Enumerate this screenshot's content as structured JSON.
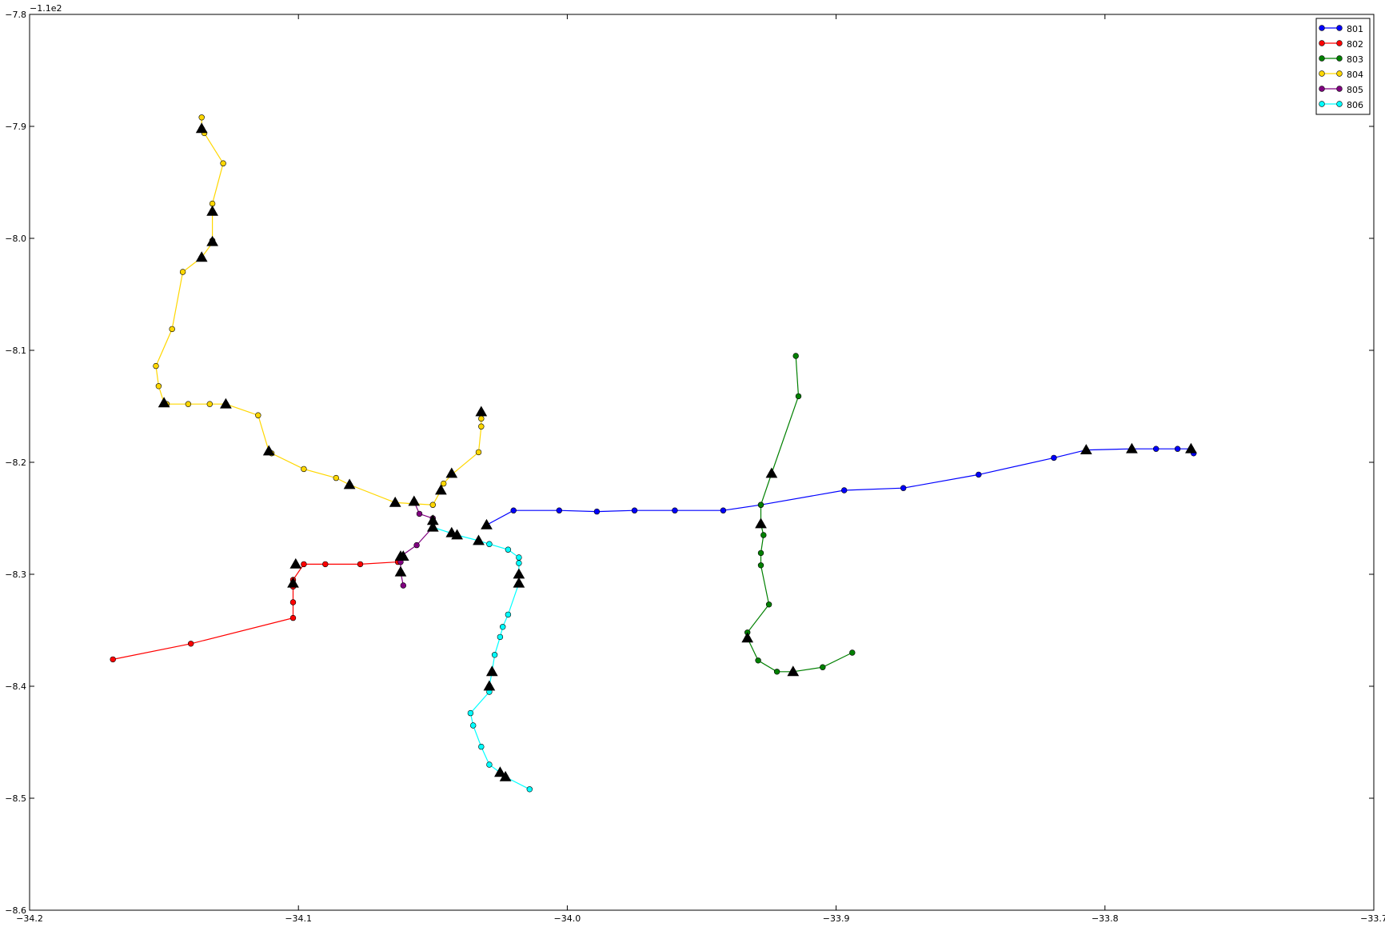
{
  "chart_data": {
    "type": "line",
    "title": "",
    "xlabel": "",
    "ylabel": "",
    "xlim": [
      -34.2,
      -33.7
    ],
    "ylim": [
      -8.6,
      -7.8
    ],
    "y_offset_label": "−1.1e2",
    "xticks": [
      -34.2,
      -34.1,
      -34.0,
      -33.9,
      -33.8,
      -33.7
    ],
    "xtick_labels": [
      "−34.2",
      "−34.1",
      "−34.0",
      "−33.9",
      "−33.8",
      "−33.7"
    ],
    "yticks": [
      -7.8,
      -7.9,
      -8.0,
      -8.1,
      -8.2,
      -8.3,
      -8.4,
      -8.5,
      -8.6
    ],
    "ytick_labels": [
      "−7.8",
      "−7.9",
      "−8.0",
      "−8.1",
      "−8.2",
      "−8.3",
      "−8.4",
      "−8.5",
      "−8.6"
    ],
    "grid": false,
    "legend_position": "top-right",
    "series": [
      {
        "name": "801",
        "color": "#0000ff",
        "points": [
          [
            -34.03,
            -8.256
          ],
          [
            -34.02,
            -8.243
          ],
          [
            -34.003,
            -8.243
          ],
          [
            -33.989,
            -8.244
          ],
          [
            -33.975,
            -8.243
          ],
          [
            -33.96,
            -8.243
          ],
          [
            -33.942,
            -8.243
          ],
          [
            -33.928,
            -8.238
          ],
          [
            -33.897,
            -8.225
          ],
          [
            -33.875,
            -8.223
          ],
          [
            -33.847,
            -8.211
          ],
          [
            -33.819,
            -8.196
          ],
          [
            -33.807,
            -8.189
          ],
          [
            -33.79,
            -8.188
          ],
          [
            -33.781,
            -8.188
          ],
          [
            -33.773,
            -8.188
          ],
          [
            -33.768,
            -8.188
          ],
          [
            -33.767,
            -8.192
          ]
        ],
        "markers": [
          [
            -34.03,
            -8.256
          ],
          [
            -33.807,
            -8.189
          ],
          [
            -33.79,
            -8.188
          ],
          [
            -33.768,
            -8.188
          ]
        ]
      },
      {
        "name": "802",
        "color": "#ff0000",
        "points": [
          [
            -34.169,
            -8.376
          ],
          [
            -34.14,
            -8.362
          ],
          [
            -34.102,
            -8.339
          ],
          [
            -34.102,
            -8.325
          ],
          [
            -34.102,
            -8.311
          ],
          [
            -34.102,
            -8.305
          ],
          [
            -34.098,
            -8.291
          ],
          [
            -34.09,
            -8.291
          ],
          [
            -34.077,
            -8.291
          ],
          [
            -34.063,
            -8.289
          ],
          [
            -34.061,
            -8.284
          ]
        ],
        "markers": [
          [
            -34.101,
            -8.291
          ],
          [
            -34.102,
            -8.308
          ],
          [
            -34.061,
            -8.284
          ]
        ]
      },
      {
        "name": "803",
        "color": "#008000",
        "points": [
          [
            -33.915,
            -8.105
          ],
          [
            -33.914,
            -8.141
          ],
          [
            -33.924,
            -8.21
          ],
          [
            -33.928,
            -8.238
          ],
          [
            -33.928,
            -8.255
          ],
          [
            -33.927,
            -8.265
          ],
          [
            -33.928,
            -8.281
          ],
          [
            -33.928,
            -8.292
          ],
          [
            -33.925,
            -8.327
          ],
          [
            -33.933,
            -8.352
          ],
          [
            -33.933,
            -8.357
          ],
          [
            -33.929,
            -8.377
          ],
          [
            -33.922,
            -8.387
          ],
          [
            -33.916,
            -8.387
          ],
          [
            -33.905,
            -8.383
          ],
          [
            -33.894,
            -8.37
          ]
        ],
        "markers": [
          [
            -33.924,
            -8.21
          ],
          [
            -33.928,
            -8.255
          ],
          [
            -33.933,
            -8.357
          ],
          [
            -33.916,
            -8.387
          ]
        ]
      },
      {
        "name": "804",
        "color": "#ffd700",
        "points": [
          [
            -34.136,
            -7.892
          ],
          [
            -34.136,
            -7.902
          ],
          [
            -34.135,
            -7.906
          ],
          [
            -34.128,
            -7.933
          ],
          [
            -34.132,
            -7.969
          ],
          [
            -34.132,
            -7.976
          ],
          [
            -34.132,
            -8.002
          ],
          [
            -34.132,
            -8.004
          ],
          [
            -34.136,
            -8.017
          ],
          [
            -34.143,
            -8.03
          ],
          [
            -34.147,
            -8.081
          ],
          [
            -34.153,
            -8.114
          ],
          [
            -34.152,
            -8.132
          ],
          [
            -34.15,
            -8.147
          ],
          [
            -34.149,
            -8.148
          ],
          [
            -34.141,
            -8.148
          ],
          [
            -34.133,
            -8.148
          ],
          [
            -34.127,
            -8.148
          ],
          [
            -34.115,
            -8.158
          ],
          [
            -34.111,
            -8.19
          ],
          [
            -34.11,
            -8.192
          ],
          [
            -34.098,
            -8.206
          ],
          [
            -34.086,
            -8.214
          ],
          [
            -34.081,
            -8.22
          ],
          [
            -34.064,
            -8.236
          ],
          [
            -34.05,
            -8.238
          ],
          [
            -34.047,
            -8.225
          ],
          [
            -34.046,
            -8.219
          ],
          [
            -34.043,
            -8.211
          ],
          [
            -34.033,
            -8.191
          ],
          [
            -34.032,
            -8.168
          ],
          [
            -34.032,
            -8.161
          ],
          [
            -34.032,
            -8.155
          ]
        ],
        "markers": [
          [
            -34.136,
            -7.902
          ],
          [
            -34.132,
            -7.976
          ],
          [
            -34.132,
            -8.003
          ],
          [
            -34.136,
            -8.017
          ],
          [
            -34.15,
            -8.147
          ],
          [
            -34.127,
            -8.148
          ],
          [
            -34.111,
            -8.19
          ],
          [
            -34.081,
            -8.22
          ],
          [
            -34.064,
            -8.236
          ],
          [
            -34.047,
            -8.225
          ],
          [
            -34.043,
            -8.21
          ],
          [
            -34.032,
            -8.155
          ]
        ]
      },
      {
        "name": "805",
        "color": "#800080",
        "points": [
          [
            -34.057,
            -8.235
          ],
          [
            -34.055,
            -8.246
          ],
          [
            -34.05,
            -8.25
          ],
          [
            -34.05,
            -8.258
          ],
          [
            -34.056,
            -8.274
          ],
          [
            -34.062,
            -8.284
          ],
          [
            -34.062,
            -8.289
          ],
          [
            -34.062,
            -8.298
          ],
          [
            -34.061,
            -8.31
          ]
        ],
        "markers": [
          [
            -34.057,
            -8.235
          ],
          [
            -34.05,
            -8.252
          ],
          [
            -34.062,
            -8.284
          ],
          [
            -34.062,
            -8.298
          ]
        ]
      },
      {
        "name": "806",
        "color": "#00ffff",
        "points": [
          [
            -34.05,
            -8.258
          ],
          [
            -34.041,
            -8.265
          ],
          [
            -34.033,
            -8.27
          ],
          [
            -34.029,
            -8.273
          ],
          [
            -34.022,
            -8.278
          ],
          [
            -34.018,
            -8.285
          ],
          [
            -34.018,
            -8.29
          ],
          [
            -34.018,
            -8.3
          ],
          [
            -34.018,
            -8.308
          ],
          [
            -34.022,
            -8.336
          ],
          [
            -34.024,
            -8.347
          ],
          [
            -34.025,
            -8.356
          ],
          [
            -34.027,
            -8.372
          ],
          [
            -34.028,
            -8.387
          ],
          [
            -34.029,
            -8.4
          ],
          [
            -34.029,
            -8.405
          ],
          [
            -34.036,
            -8.424
          ],
          [
            -34.035,
            -8.435
          ],
          [
            -34.032,
            -8.454
          ],
          [
            -34.029,
            -8.47
          ],
          [
            -34.025,
            -8.477
          ],
          [
            -34.023,
            -8.481
          ],
          [
            -34.014,
            -8.492
          ]
        ],
        "markers": [
          [
            -34.05,
            -8.258
          ],
          [
            -34.043,
            -8.263
          ],
          [
            -34.041,
            -8.265
          ],
          [
            -34.033,
            -8.27
          ],
          [
            -34.018,
            -8.3
          ],
          [
            -34.018,
            -8.308
          ],
          [
            -34.028,
            -8.387
          ],
          [
            -34.029,
            -8.4
          ],
          [
            -34.025,
            -8.477
          ],
          [
            -34.023,
            -8.481
          ]
        ]
      }
    ]
  }
}
